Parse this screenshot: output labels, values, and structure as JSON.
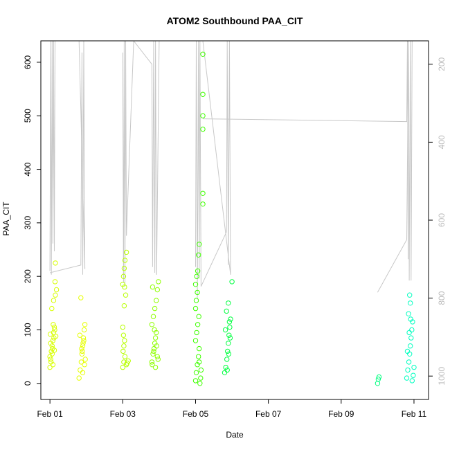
{
  "chart_data": {
    "type": "scatter",
    "title": "ATOM2 Southbound PAA_CIT",
    "xlabel": "Date",
    "ylabel": "PAA_CIT",
    "x_ticks": [
      "Feb 01",
      "Feb 03",
      "Feb 05",
      "Feb 07",
      "Feb 09",
      "Feb 11"
    ],
    "x_tick_days": [
      1,
      3,
      5,
      7,
      9,
      11
    ],
    "xlim": [
      0.75,
      11.4
    ],
    "ylim": [
      -30,
      640
    ],
    "y_ticks": [
      0,
      100,
      200,
      300,
      400,
      500,
      600
    ],
    "y2_ticks": [
      200,
      400,
      600,
      800,
      1000
    ],
    "y2lim": [
      1060,
      140
    ],
    "grid": false,
    "series": [
      {
        "color": "#d8ff00",
        "points": [
          [
            1.0,
            30
          ],
          [
            1.02,
            45
          ],
          [
            1.04,
            60
          ],
          [
            1.06,
            70
          ],
          [
            1.08,
            80
          ],
          [
            1.1,
            95
          ],
          [
            1.12,
            105
          ],
          [
            1.05,
            140
          ],
          [
            1.1,
            155
          ],
          [
            1.15,
            165
          ],
          [
            1.18,
            175
          ],
          [
            1.0,
            50
          ],
          [
            1.03,
            40
          ],
          [
            1.07,
            65
          ],
          [
            1.11,
            85
          ],
          [
            1.13,
            100
          ],
          [
            1.09,
            110
          ],
          [
            1.14,
            190
          ],
          [
            1.15,
            225
          ],
          [
            1.02,
            75
          ],
          [
            1.06,
            55
          ],
          [
            1.16,
            88
          ],
          [
            1.01,
            92
          ],
          [
            1.08,
            35
          ],
          [
            1.12,
            62
          ]
        ]
      },
      {
        "color": "#e6ff00",
        "points": [
          [
            1.8,
            10
          ],
          [
            1.83,
            25
          ],
          [
            1.86,
            40
          ],
          [
            1.88,
            55
          ],
          [
            1.9,
            70
          ],
          [
            1.92,
            85
          ],
          [
            1.94,
            100
          ],
          [
            1.96,
            110
          ],
          [
            1.85,
            160
          ],
          [
            1.9,
            20
          ],
          [
            1.95,
            35
          ],
          [
            1.87,
            65
          ],
          [
            1.93,
            80
          ],
          [
            1.82,
            90
          ],
          [
            1.97,
            45
          ],
          [
            1.89,
            60
          ],
          [
            1.91,
            75
          ]
        ]
      },
      {
        "color": "#b8ff00",
        "points": [
          [
            3.0,
            30
          ],
          [
            3.03,
            40
          ],
          [
            3.06,
            50
          ],
          [
            3.1,
            35
          ],
          [
            3.15,
            42
          ],
          [
            3.05,
            80
          ],
          [
            3.02,
            90
          ],
          [
            3.0,
            105
          ],
          [
            3.04,
            145
          ],
          [
            3.08,
            165
          ],
          [
            3.0,
            185
          ],
          [
            3.02,
            200
          ],
          [
            3.04,
            215
          ],
          [
            3.06,
            230
          ],
          [
            3.1,
            245
          ],
          [
            3.05,
            180
          ],
          [
            3.12,
            38
          ],
          [
            3.01,
            60
          ],
          [
            3.03,
            70
          ]
        ]
      },
      {
        "color": "#8fff00",
        "points": [
          [
            3.8,
            40
          ],
          [
            3.83,
            55
          ],
          [
            3.86,
            65
          ],
          [
            3.88,
            75
          ],
          [
            3.9,
            85
          ],
          [
            3.92,
            95
          ],
          [
            3.8,
            110
          ],
          [
            3.84,
            125
          ],
          [
            3.88,
            140
          ],
          [
            3.92,
            155
          ],
          [
            3.95,
            175
          ],
          [
            3.98,
            190
          ],
          [
            3.82,
            180
          ],
          [
            3.9,
            30
          ],
          [
            3.95,
            50
          ],
          [
            3.85,
            60
          ],
          [
            3.93,
            70
          ],
          [
            3.97,
            45
          ],
          [
            3.87,
            100
          ],
          [
            3.81,
            35
          ]
        ]
      },
      {
        "color": "#3fff00",
        "points": [
          [
            5.0,
            5
          ],
          [
            5.02,
            20
          ],
          [
            5.05,
            35
          ],
          [
            5.08,
            50
          ],
          [
            5.1,
            65
          ],
          [
            5.0,
            80
          ],
          [
            5.03,
            95
          ],
          [
            5.06,
            110
          ],
          [
            5.09,
            125
          ],
          [
            5.0,
            140
          ],
          [
            5.02,
            155
          ],
          [
            5.05,
            170
          ],
          [
            5.0,
            185
          ],
          [
            5.03,
            200
          ],
          [
            5.06,
            210
          ],
          [
            5.08,
            240
          ],
          [
            5.1,
            260
          ],
          [
            5.12,
            0
          ],
          [
            5.14,
            10
          ],
          [
            5.2,
            615
          ],
          [
            5.2,
            540
          ],
          [
            5.2,
            500
          ],
          [
            5.2,
            475
          ],
          [
            5.2,
            355
          ],
          [
            5.2,
            335
          ],
          [
            5.15,
            25
          ],
          [
            5.1,
            40
          ]
        ]
      },
      {
        "color": "#00ff40",
        "points": [
          [
            5.8,
            20
          ],
          [
            5.83,
            30
          ],
          [
            5.86,
            45
          ],
          [
            5.88,
            60
          ],
          [
            5.9,
            75
          ],
          [
            5.92,
            90
          ],
          [
            5.94,
            105
          ],
          [
            5.96,
            120
          ],
          [
            5.85,
            135
          ],
          [
            5.9,
            150
          ],
          [
            6.0,
            190
          ],
          [
            5.87,
            25
          ],
          [
            5.91,
            55
          ],
          [
            5.95,
            85
          ],
          [
            5.82,
            100
          ],
          [
            5.93,
            115
          ]
        ]
      },
      {
        "color": "#00ff80",
        "points": [
          [
            10.0,
            0
          ],
          [
            10.02,
            8
          ],
          [
            10.04,
            12
          ]
        ]
      },
      {
        "color": "#00ffc0",
        "points": [
          [
            10.8,
            10
          ],
          [
            10.83,
            25
          ],
          [
            10.86,
            40
          ],
          [
            10.88,
            55
          ],
          [
            10.9,
            70
          ],
          [
            10.92,
            85
          ],
          [
            10.94,
            100
          ],
          [
            10.96,
            115
          ],
          [
            10.85,
            130
          ],
          [
            10.9,
            150
          ],
          [
            10.88,
            165
          ],
          [
            10.95,
            5
          ],
          [
            10.98,
            15
          ],
          [
            11.0,
            30
          ],
          [
            10.82,
            60
          ],
          [
            10.87,
            95
          ],
          [
            10.91,
            120
          ]
        ]
      }
    ],
    "line_series": {
      "color": "#c8c8c8",
      "axis": "right",
      "segments": [
        [
          [
            1.0,
            730
          ],
          [
            1.02,
            140
          ],
          [
            1.04,
            740
          ],
          [
            1.06,
            140
          ],
          [
            1.08,
            660
          ],
          [
            1.1,
            140
          ],
          [
            1.12,
            680
          ],
          [
            1.14,
            140
          ]
        ],
        [
          [
            1.0,
            735
          ],
          [
            1.85,
            715
          ],
          [
            1.88,
            170
          ],
          [
            1.9,
            740
          ],
          [
            1.93,
            140
          ],
          [
            1.96,
            725
          ]
        ],
        [
          [
            1.96,
            725
          ],
          [
            1.8,
            140
          ]
        ],
        [
          [
            3.0,
            170
          ],
          [
            3.02,
            760
          ],
          [
            3.04,
            140
          ],
          [
            3.06,
            770
          ],
          [
            3.08,
            140
          ],
          [
            3.1,
            640
          ]
        ],
        [
          [
            3.1,
            640
          ],
          [
            3.3,
            140
          ]
        ],
        [
          [
            3.3,
            140
          ],
          [
            3.8,
            200
          ],
          [
            3.82,
            720
          ],
          [
            3.85,
            140
          ],
          [
            3.88,
            735
          ],
          [
            3.9,
            140
          ],
          [
            3.93,
            740
          ]
        ],
        [
          [
            3.93,
            740
          ],
          [
            4.0,
            140
          ]
        ],
        [
          [
            5.0,
            720
          ],
          [
            5.02,
            140
          ],
          [
            5.05,
            800
          ],
          [
            5.08,
            140
          ],
          [
            5.1,
            750
          ],
          [
            5.12,
            140
          ],
          [
            5.15,
            770
          ]
        ],
        [
          [
            5.15,
            770
          ],
          [
            5.85,
            630
          ],
          [
            5.87,
            140
          ],
          [
            5.9,
            715
          ],
          [
            5.93,
            140
          ],
          [
            5.96,
            740
          ]
        ],
        [
          [
            5.96,
            740
          ],
          [
            5.2,
            140
          ]
        ],
        [
          [
            5.2,
            340
          ],
          [
            10.8,
            347
          ],
          [
            10.82,
            140
          ],
          [
            10.84,
            700
          ]
        ],
        [
          [
            10.0,
            785
          ],
          [
            10.8,
            650
          ],
          [
            10.85,
            140
          ],
          [
            10.87,
            755
          ],
          [
            10.9,
            140
          ],
          [
            10.92,
            755
          ],
          [
            10.95,
            140
          ]
        ]
      ]
    }
  }
}
